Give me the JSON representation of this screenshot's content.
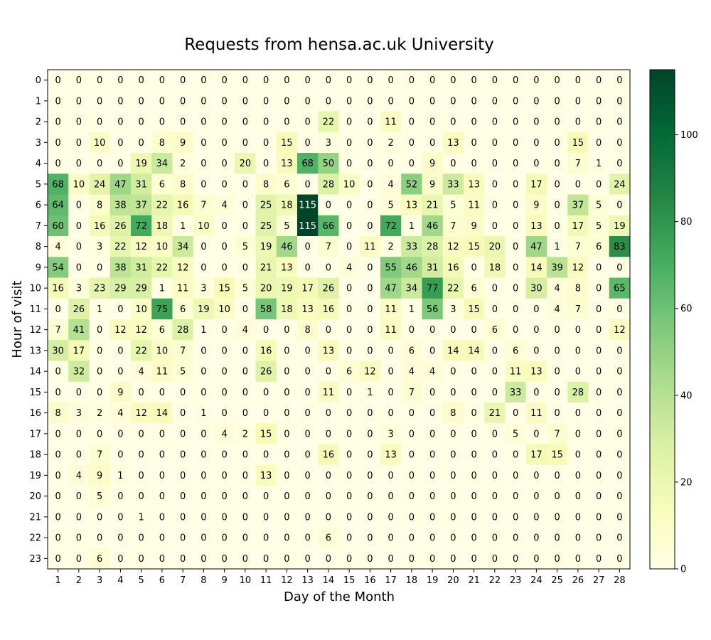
{
  "chart_data": {
    "type": "heatmap",
    "title": "Requests from hensa.ac.uk University",
    "xlabel": "Day of the Month",
    "ylabel": "Hour of visit",
    "x": [
      "1",
      "2",
      "3",
      "4",
      "5",
      "6",
      "7",
      "8",
      "9",
      "10",
      "11",
      "12",
      "13",
      "14",
      "15",
      "16",
      "17",
      "18",
      "19",
      "20",
      "21",
      "22",
      "23",
      "24",
      "25",
      "26",
      "27",
      "28"
    ],
    "y": [
      "0",
      "1",
      "2",
      "3",
      "4",
      "5",
      "6",
      "7",
      "8",
      "9",
      "10",
      "11",
      "12",
      "13",
      "14",
      "15",
      "16",
      "17",
      "18",
      "19",
      "20",
      "21",
      "22",
      "23"
    ],
    "values": [
      [
        0,
        0,
        0,
        0,
        0,
        0,
        0,
        0,
        0,
        0,
        0,
        0,
        0,
        0,
        0,
        0,
        0,
        0,
        0,
        0,
        0,
        0,
        0,
        0,
        0,
        0,
        0,
        0
      ],
      [
        0,
        0,
        0,
        0,
        0,
        0,
        0,
        0,
        0,
        0,
        0,
        0,
        0,
        0,
        0,
        0,
        0,
        0,
        0,
        0,
        0,
        0,
        0,
        0,
        0,
        0,
        0,
        0
      ],
      [
        0,
        0,
        0,
        0,
        0,
        0,
        0,
        0,
        0,
        0,
        0,
        0,
        0,
        22,
        0,
        0,
        11,
        0,
        0,
        0,
        0,
        0,
        0,
        0,
        0,
        0,
        0,
        0
      ],
      [
        0,
        0,
        10,
        0,
        0,
        8,
        9,
        0,
        0,
        0,
        0,
        15,
        0,
        3,
        0,
        0,
        2,
        0,
        0,
        13,
        0,
        0,
        0,
        0,
        0,
        15,
        0,
        0
      ],
      [
        0,
        0,
        0,
        0,
        19,
        34,
        2,
        0,
        0,
        20,
        0,
        13,
        68,
        50,
        0,
        0,
        0,
        0,
        9,
        0,
        0,
        0,
        0,
        0,
        0,
        7,
        1,
        0
      ],
      [
        68,
        10,
        24,
        47,
        31,
        6,
        8,
        0,
        0,
        0,
        8,
        6,
        0,
        28,
        10,
        0,
        4,
        52,
        9,
        33,
        13,
        0,
        0,
        17,
        0,
        0,
        0,
        24
      ],
      [
        64,
        0,
        8,
        38,
        37,
        22,
        16,
        7,
        4,
        0,
        25,
        18,
        115,
        0,
        0,
        0,
        5,
        13,
        21,
        5,
        11,
        0,
        0,
        9,
        0,
        37,
        5,
        0
      ],
      [
        60,
        0,
        16,
        26,
        72,
        18,
        1,
        10,
        0,
        0,
        25,
        5,
        115,
        66,
        0,
        0,
        72,
        1,
        46,
        7,
        9,
        0,
        0,
        13,
        0,
        17,
        5,
        19
      ],
      [
        4,
        0,
        3,
        22,
        12,
        10,
        34,
        0,
        0,
        5,
        19,
        46,
        0,
        7,
        0,
        11,
        2,
        33,
        28,
        12,
        15,
        20,
        0,
        47,
        1,
        7,
        6,
        83
      ],
      [
        54,
        0,
        0,
        38,
        31,
        22,
        12,
        0,
        0,
        0,
        21,
        13,
        0,
        0,
        4,
        0,
        55,
        46,
        31,
        16,
        0,
        18,
        0,
        14,
        39,
        12,
        0,
        0
      ],
      [
        16,
        3,
        23,
        29,
        29,
        1,
        11,
        3,
        15,
        5,
        20,
        19,
        17,
        26,
        0,
        0,
        47,
        34,
        77,
        22,
        6,
        0,
        0,
        30,
        4,
        8,
        0,
        65
      ],
      [
        0,
        26,
        1,
        0,
        10,
        75,
        6,
        19,
        10,
        0,
        58,
        18,
        13,
        16,
        0,
        0,
        11,
        1,
        56,
        3,
        15,
        0,
        0,
        0,
        4,
        7,
        0,
        0
      ],
      [
        7,
        41,
        0,
        12,
        12,
        6,
        28,
        1,
        0,
        4,
        0,
        0,
        8,
        0,
        0,
        0,
        11,
        0,
        0,
        0,
        0,
        6,
        0,
        0,
        0,
        0,
        0,
        12
      ],
      [
        30,
        17,
        0,
        0,
        22,
        10,
        7,
        0,
        0,
        0,
        16,
        0,
        0,
        13,
        0,
        0,
        0,
        6,
        0,
        14,
        14,
        0,
        6,
        0,
        0,
        0,
        0,
        0
      ],
      [
        0,
        32,
        0,
        0,
        4,
        11,
        5,
        0,
        0,
        0,
        26,
        0,
        0,
        0,
        6,
        12,
        0,
        4,
        4,
        0,
        0,
        0,
        11,
        13,
        0,
        0,
        0,
        0
      ],
      [
        0,
        0,
        0,
        9,
        0,
        0,
        0,
        0,
        0,
        0,
        0,
        0,
        0,
        11,
        0,
        1,
        0,
        7,
        0,
        0,
        0,
        0,
        33,
        0,
        0,
        28,
        0,
        0
      ],
      [
        8,
        3,
        2,
        4,
        12,
        14,
        0,
        1,
        0,
        0,
        0,
        0,
        0,
        0,
        0,
        0,
        0,
        0,
        0,
        8,
        0,
        21,
        0,
        11,
        0,
        0,
        0,
        0
      ],
      [
        0,
        0,
        0,
        0,
        0,
        0,
        0,
        0,
        4,
        2,
        15,
        0,
        0,
        0,
        0,
        0,
        3,
        0,
        0,
        0,
        0,
        0,
        5,
        0,
        7,
        0,
        0,
        0
      ],
      [
        0,
        0,
        7,
        0,
        0,
        0,
        0,
        0,
        0,
        0,
        0,
        0,
        0,
        16,
        0,
        0,
        13,
        0,
        0,
        0,
        0,
        0,
        0,
        17,
        15,
        0,
        0,
        0
      ],
      [
        0,
        4,
        9,
        1,
        0,
        0,
        0,
        0,
        0,
        0,
        13,
        0,
        0,
        0,
        0,
        0,
        0,
        0,
        0,
        0,
        0,
        0,
        0,
        0,
        0,
        0,
        0,
        0
      ],
      [
        0,
        0,
        5,
        0,
        0,
        0,
        0,
        0,
        0,
        0,
        0,
        0,
        0,
        0,
        0,
        0,
        0,
        0,
        0,
        0,
        0,
        0,
        0,
        0,
        0,
        0,
        0,
        0
      ],
      [
        0,
        0,
        0,
        0,
        1,
        0,
        0,
        0,
        0,
        0,
        0,
        0,
        0,
        0,
        0,
        0,
        0,
        0,
        0,
        0,
        0,
        0,
        0,
        0,
        0,
        0,
        0,
        0
      ],
      [
        0,
        0,
        0,
        0,
        0,
        0,
        0,
        0,
        0,
        0,
        0,
        0,
        0,
        6,
        0,
        0,
        0,
        0,
        0,
        0,
        0,
        0,
        0,
        0,
        0,
        0,
        0,
        0
      ],
      [
        0,
        0,
        6,
        0,
        0,
        0,
        0,
        0,
        0,
        0,
        0,
        0,
        0,
        0,
        0,
        0,
        0,
        0,
        0,
        0,
        0,
        0,
        0,
        0,
        0,
        0,
        0,
        0
      ]
    ],
    "colormap": "YlGn",
    "colorbar": {
      "range": [
        0,
        115
      ],
      "ticks": [
        0,
        20,
        40,
        60,
        80,
        100
      ]
    },
    "grid": false,
    "legend": "colorbar-right"
  }
}
